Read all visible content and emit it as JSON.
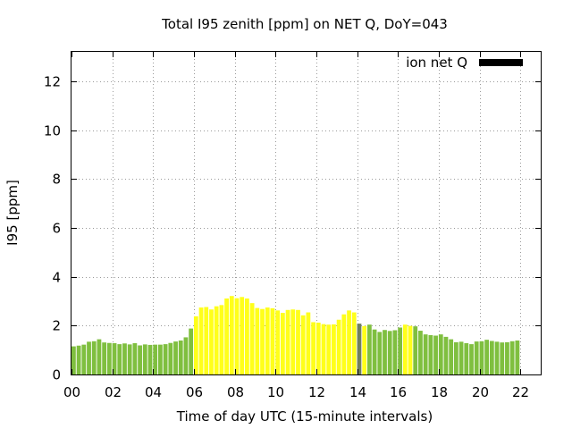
{
  "chart_data": {
    "type": "bar",
    "title": "Total I95 zenith [ppm] on NET Q, DoY=043",
    "xlabel": "Time of day UTC (15-minute intervals)",
    "ylabel": "I95 [ppm]",
    "legend": {
      "label": "ion net Q",
      "color": "#000000",
      "placement": "top-right"
    },
    "ylim": [
      0,
      13.2
    ],
    "xlim": [
      0,
      23
    ],
    "x_ticks": [
      "00",
      "02",
      "04",
      "06",
      "08",
      "10",
      "12",
      "14",
      "16",
      "18",
      "20",
      "22"
    ],
    "y_ticks": [
      "0",
      "2",
      "4",
      "6",
      "8",
      "10",
      "12"
    ],
    "grid": true,
    "interval_hours": 0.25,
    "colors": {
      "green": "#7fbf3f",
      "yellow": "#ffff1a",
      "gray": "#6f7f5f"
    },
    "values": [
      1.15,
      1.18,
      1.22,
      1.34,
      1.36,
      1.44,
      1.31,
      1.29,
      1.28,
      1.24,
      1.27,
      1.23,
      1.28,
      1.19,
      1.23,
      1.21,
      1.22,
      1.22,
      1.24,
      1.29,
      1.35,
      1.39,
      1.52,
      1.88,
      2.38,
      2.74,
      2.76,
      2.66,
      2.79,
      2.84,
      3.11,
      3.21,
      3.12,
      3.17,
      3.11,
      2.92,
      2.72,
      2.68,
      2.74,
      2.71,
      2.62,
      2.52,
      2.64,
      2.66,
      2.64,
      2.42,
      2.54,
      2.14,
      2.12,
      2.06,
      2.04,
      2.05,
      2.24,
      2.46,
      2.62,
      2.54,
      2.08,
      1.98,
      2.04,
      1.84,
      1.74,
      1.82,
      1.78,
      1.81,
      1.92,
      2.04,
      1.99,
      1.97,
      1.79,
      1.64,
      1.61,
      1.59,
      1.64,
      1.54,
      1.44,
      1.32,
      1.34,
      1.28,
      1.24,
      1.35,
      1.36,
      1.42,
      1.37,
      1.34,
      1.31,
      1.32,
      1.36,
      1.39
    ],
    "bar_colors": [
      "green",
      "green",
      "green",
      "green",
      "green",
      "green",
      "green",
      "green",
      "green",
      "green",
      "green",
      "green",
      "green",
      "green",
      "green",
      "green",
      "green",
      "green",
      "green",
      "green",
      "green",
      "green",
      "green",
      "green",
      "yellow",
      "yellow",
      "yellow",
      "yellow",
      "yellow",
      "yellow",
      "yellow",
      "yellow",
      "yellow",
      "yellow",
      "yellow",
      "yellow",
      "yellow",
      "yellow",
      "yellow",
      "yellow",
      "yellow",
      "yellow",
      "yellow",
      "yellow",
      "yellow",
      "yellow",
      "yellow",
      "yellow",
      "yellow",
      "yellow",
      "yellow",
      "yellow",
      "yellow",
      "yellow",
      "yellow",
      "yellow",
      "gray",
      "yellow",
      "green",
      "green",
      "green",
      "green",
      "green",
      "green",
      "green",
      "yellow",
      "yellow",
      "green",
      "green",
      "green",
      "green",
      "green",
      "green",
      "green",
      "green",
      "green",
      "green",
      "green",
      "green",
      "green",
      "green",
      "green",
      "green",
      "green",
      "green",
      "green",
      "green",
      "green"
    ]
  }
}
